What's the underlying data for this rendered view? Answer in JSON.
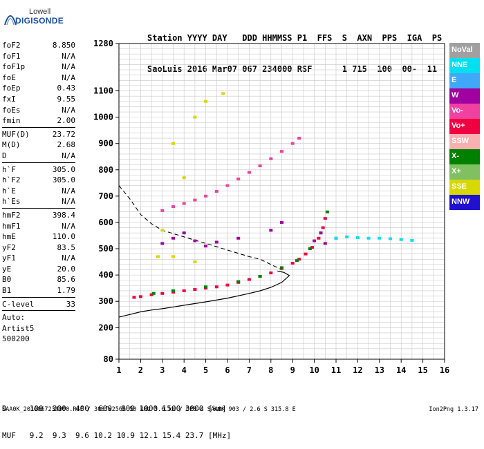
{
  "logo": {
    "line1": "Lowell",
    "line2": "DIGISONDE"
  },
  "header": {
    "line1": "Station YYYY DAY   DDD HHMMSS P1  FFS  S  AXN  PPS  IGA  PS",
    "line2": "SaoLuis 2016 Mar07 067 234000 RSF      1 715  100  00-  11"
  },
  "params": {
    "group1": [
      {
        "name": "foF2",
        "value": "8.850"
      },
      {
        "name": "foF1",
        "value": "N/A"
      },
      {
        "name": "foF1p",
        "value": "N/A"
      },
      {
        "name": "foE",
        "value": "N/A"
      },
      {
        "name": "foEp",
        "value": "0.43"
      },
      {
        "name": "fxI",
        "value": "9.55"
      },
      {
        "name": "foEs",
        "value": "N/A"
      },
      {
        "name": "fmin",
        "value": "2.00"
      }
    ],
    "group2": [
      {
        "name": "MUF(D)",
        "value": "23.72"
      },
      {
        "name": "M(D)",
        "value": "2.68"
      },
      {
        "name": "D",
        "value": "N/A"
      }
    ],
    "group3": [
      {
        "name": "h`F",
        "value": "305.0"
      },
      {
        "name": "h`F2",
        "value": "305.0"
      },
      {
        "name": "h`E",
        "value": "N/A"
      },
      {
        "name": "h`Es",
        "value": "N/A"
      }
    ],
    "group4": [
      {
        "name": "hmF2",
        "value": "398.4"
      },
      {
        "name": "hmF1",
        "value": "N/A"
      },
      {
        "name": "hmE",
        "value": "110.0"
      },
      {
        "name": "yF2",
        "value": "83.5"
      },
      {
        "name": "yF1",
        "value": "N/A"
      },
      {
        "name": "yE",
        "value": "20.0"
      },
      {
        "name": "B0",
        "value": "85.6"
      },
      {
        "name": "B1",
        "value": "1.79"
      }
    ],
    "group5": [
      {
        "name": "C-level",
        "value": "33"
      }
    ],
    "auto": [
      "Auto:",
      "Artist5",
      "500200"
    ]
  },
  "footer": {
    "d_line": "D     100  200  400  600  800 1000 1500 3000 [km]",
    "muf_line": "MUF   9.2  9.3  9.6 10.2 10.9 12.1 15.4 23.7 [MHz]"
  },
  "source_line": "SAA0K_2016067234000.RSF / 300fx256h 50 kHz 5.0 km / DPS-4 SAA0K 903 / 2.6 S 315.8 E",
  "version": "Ion2Png 1.3.17",
  "legend": [
    {
      "label": "NoVal",
      "color": "#a0a0a0"
    },
    {
      "label": "NNE",
      "color": "#00e0f0"
    },
    {
      "label": "E",
      "color": "#40a8f8"
    },
    {
      "label": "W",
      "color": "#a000a0"
    },
    {
      "label": "Vo-",
      "color": "#f040a0"
    },
    {
      "label": "Vo+",
      "color": "#f00040"
    },
    {
      "label": "SSW",
      "color": "#f8b0b0"
    },
    {
      "label": "X-",
      "color": "#008000"
    },
    {
      "label": "X+",
      "color": "#80c060"
    },
    {
      "label": "SSE",
      "color": "#d8d800"
    },
    {
      "label": "NNW",
      "color": "#2010d0"
    }
  ],
  "chart_data": {
    "type": "scatter",
    "xlim": [
      1,
      16
    ],
    "ylim": [
      80,
      1280
    ],
    "x_ticks": [
      1,
      2,
      3,
      4,
      5,
      6,
      7,
      8,
      9,
      10,
      11,
      12,
      13,
      14,
      15,
      16
    ],
    "y_ticks": [
      80,
      200,
      300,
      400,
      500,
      600,
      700,
      800,
      900,
      1000,
      1100,
      1280
    ],
    "grid": true,
    "legend_position": "right",
    "series": [
      {
        "name": "Vo+",
        "points": [
          [
            1.7,
            315
          ],
          [
            2,
            318
          ],
          [
            2.5,
            325
          ],
          [
            3,
            330
          ],
          [
            3.5,
            335
          ],
          [
            4,
            340
          ],
          [
            4.5,
            345
          ],
          [
            5,
            350
          ],
          [
            5.5,
            355
          ],
          [
            6,
            362
          ],
          [
            6.5,
            372
          ],
          [
            7,
            383
          ],
          [
            7.5,
            395
          ],
          [
            8,
            408
          ],
          [
            8.5,
            425
          ],
          [
            9,
            445
          ],
          [
            9.3,
            460
          ],
          [
            9.6,
            480
          ],
          [
            9.9,
            505
          ],
          [
            10.2,
            540
          ],
          [
            10.4,
            580
          ],
          [
            10.5,
            615
          ]
        ]
      },
      {
        "name": "X-",
        "points": [
          [
            2.6,
            330
          ],
          [
            3.5,
            340
          ],
          [
            5,
            355
          ],
          [
            6.5,
            375
          ],
          [
            7.5,
            395
          ],
          [
            8.5,
            428
          ],
          [
            9.2,
            455
          ],
          [
            9.8,
            500
          ],
          [
            10.3,
            560
          ],
          [
            10.6,
            640
          ]
        ]
      },
      {
        "name": "Vo-",
        "points": [
          [
            3,
            645
          ],
          [
            3.5,
            660
          ],
          [
            4,
            672
          ],
          [
            4.5,
            685
          ],
          [
            5,
            700
          ],
          [
            5.5,
            718
          ],
          [
            6,
            740
          ],
          [
            6.5,
            765
          ],
          [
            7,
            790
          ],
          [
            7.5,
            815
          ],
          [
            8,
            842
          ],
          [
            8.5,
            870
          ],
          [
            9,
            900
          ],
          [
            9.3,
            920
          ]
        ]
      },
      {
        "name": "SSE",
        "points": [
          [
            3,
            570
          ],
          [
            4,
            770
          ],
          [
            4.5,
            1000
          ],
          [
            5,
            1060
          ],
          [
            3.5,
            900
          ],
          [
            5.8,
            1090
          ],
          [
            2.8,
            470
          ],
          [
            3.5,
            470
          ],
          [
            4.5,
            450
          ]
        ]
      },
      {
        "name": "W",
        "points": [
          [
            3,
            520
          ],
          [
            3.5,
            540
          ],
          [
            4,
            560
          ],
          [
            4.5,
            530
          ],
          [
            5,
            510
          ],
          [
            5.5,
            525
          ],
          [
            6.5,
            540
          ],
          [
            8,
            570
          ],
          [
            8.5,
            600
          ],
          [
            10,
            530
          ],
          [
            10.5,
            520
          ],
          [
            11,
            540
          ],
          [
            10.3,
            560
          ]
        ]
      },
      {
        "name": "NNE",
        "points": [
          [
            11,
            540
          ],
          [
            11.5,
            545
          ],
          [
            12,
            542
          ],
          [
            12.5,
            540
          ],
          [
            13,
            540
          ],
          [
            13.5,
            538
          ],
          [
            14,
            535
          ],
          [
            14.5,
            532
          ]
        ]
      }
    ],
    "profile_curve": [
      [
        1,
        240
      ],
      [
        1.5,
        250
      ],
      [
        2,
        260
      ],
      [
        2.5,
        267
      ],
      [
        3,
        272
      ],
      [
        4,
        285
      ],
      [
        5,
        298
      ],
      [
        6,
        312
      ],
      [
        7,
        330
      ],
      [
        7.5,
        340
      ],
      [
        8,
        353
      ],
      [
        8.5,
        372
      ],
      [
        8.85,
        398
      ],
      [
        8.6,
        410
      ],
      [
        8.3,
        415
      ]
    ],
    "virtual_height_curve": [
      [
        1,
        740
      ],
      [
        1.5,
        690
      ],
      [
        2,
        630
      ],
      [
        2.5,
        595
      ],
      [
        3,
        570
      ],
      [
        4,
        545
      ],
      [
        5,
        520
      ],
      [
        6,
        495
      ],
      [
        7,
        470
      ],
      [
        7.5,
        460
      ],
      [
        8,
        440
      ],
      [
        8.5,
        420
      ]
    ]
  }
}
